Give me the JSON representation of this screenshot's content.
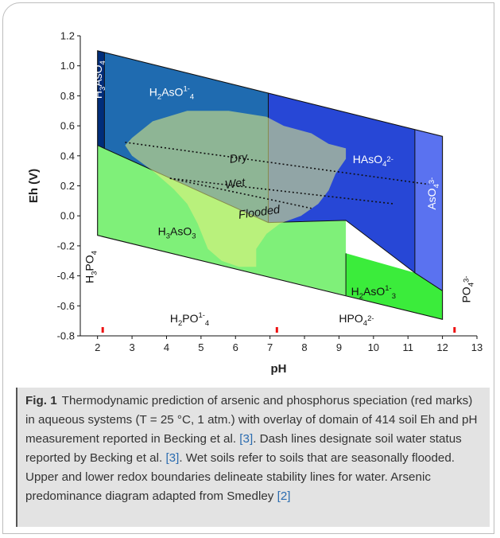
{
  "chart_data": {
    "type": "diagram",
    "xlabel": "pH",
    "ylabel": "Eh (V)",
    "xlim": [
      1.5,
      13
    ],
    "ylim": [
      -0.8,
      1.2
    ],
    "x_ticks": [
      "2",
      "3",
      "4",
      "5",
      "6",
      "7",
      "8",
      "9",
      "10",
      "11",
      "12",
      "13"
    ],
    "y_ticks": [
      "-0.8",
      "-0.6",
      "-0.4",
      "-0.2",
      "0.0",
      "0.2",
      "0.4",
      "0.6",
      "0.8",
      "1.0",
      "1.2"
    ],
    "arsenic_species": [
      {
        "key": "h3aso4",
        "base": "H",
        "sub1": "3",
        "mid": "AsO",
        "sub2": "4",
        "sup": ""
      },
      {
        "key": "h2aso4",
        "base": "H",
        "sub1": "2",
        "mid": "AsO",
        "sub2": "4",
        "sup": "1-"
      },
      {
        "key": "haso4",
        "base": "HAsO",
        "sub1": "4",
        "mid": "",
        "sub2": "",
        "sup": "2-"
      },
      {
        "key": "aso4",
        "base": "AsO",
        "sub1": "4",
        "mid": "",
        "sub2": "",
        "sup": "3-"
      },
      {
        "key": "h3aso3",
        "base": "H",
        "sub1": "3",
        "mid": "AsO",
        "sub2": "3",
        "sup": ""
      },
      {
        "key": "h2aso3",
        "base": "H",
        "sub1": "2",
        "mid": "AsO",
        "sub2": "3",
        "sup": "1-"
      }
    ],
    "phosphorus_species": [
      {
        "key": "h3po4",
        "base": "H",
        "sub1": "3",
        "mid": "PO",
        "sub2": "4",
        "sup": ""
      },
      {
        "key": "h2po4",
        "base": "H",
        "sub1": "2",
        "mid": "PO",
        "sub2": "4",
        "sup": "1-"
      },
      {
        "key": "hpo4",
        "base": "HPO",
        "sub1": "4",
        "mid": "",
        "sub2": "",
        "sup": "2-"
      },
      {
        "key": "po4",
        "base": "PO",
        "sub1": "4",
        "mid": "",
        "sub2": "",
        "sup": "3-"
      }
    ],
    "phosphorus_pka_marks": [
      2.15,
      7.2,
      12.35
    ],
    "water_upper_line": [
      [
        2,
        1.1
      ],
      [
        12,
        0.53
      ]
    ],
    "water_lower_line": [
      [
        2,
        -0.13
      ],
      [
        12,
        -0.69
      ]
    ],
    "arsenic_boundaries_ph": [
      2.2,
      6.95,
      11.2
    ],
    "arsenite_boundary_ph": 9.2,
    "soil_water_status": [
      {
        "label": "Dry",
        "from": [
          2.8,
          0.49
        ],
        "to": [
          11.6,
          0.21
        ]
      },
      {
        "label": "Wet",
        "from": [
          4.1,
          0.25
        ],
        "to": [
          10.6,
          0.08
        ]
      },
      {
        "label": "Flooded",
        "from": [
          4.1,
          0.25
        ],
        "to": [
          8.2,
          0.05
        ]
      }
    ],
    "colors": {
      "h3aso4": "#002d7a",
      "h2aso4": "#1f6bb0",
      "haso4": "#2747d6",
      "aso4": "#5a72f0",
      "h3aso3": "#7ff079",
      "h2aso3": "#3bec3b",
      "soil_domain": "#e9f37f",
      "pka_mark": "#ee1111"
    }
  },
  "caption": {
    "figure_label": "Fig. 1",
    "t1": "Thermodynamic prediction of arsenic and phosphorus speciation (red marks) in aqueous systems (T = 25 °C, 1 atm.) with overlay of domain of 414 soil Eh and pH measurement reported in Becking et al. ",
    "r1": "[3]",
    "t2": ". Dash lines designate soil water status reported by Becking et al. ",
    "r2": "[3]",
    "t3": ". Wet soils refer to soils that are seasonally flooded. Upper and lower redox boundaries delineate stability lines for water. Arsenic predominance diagram adapted from Smedley ",
    "r3": "[2]"
  }
}
